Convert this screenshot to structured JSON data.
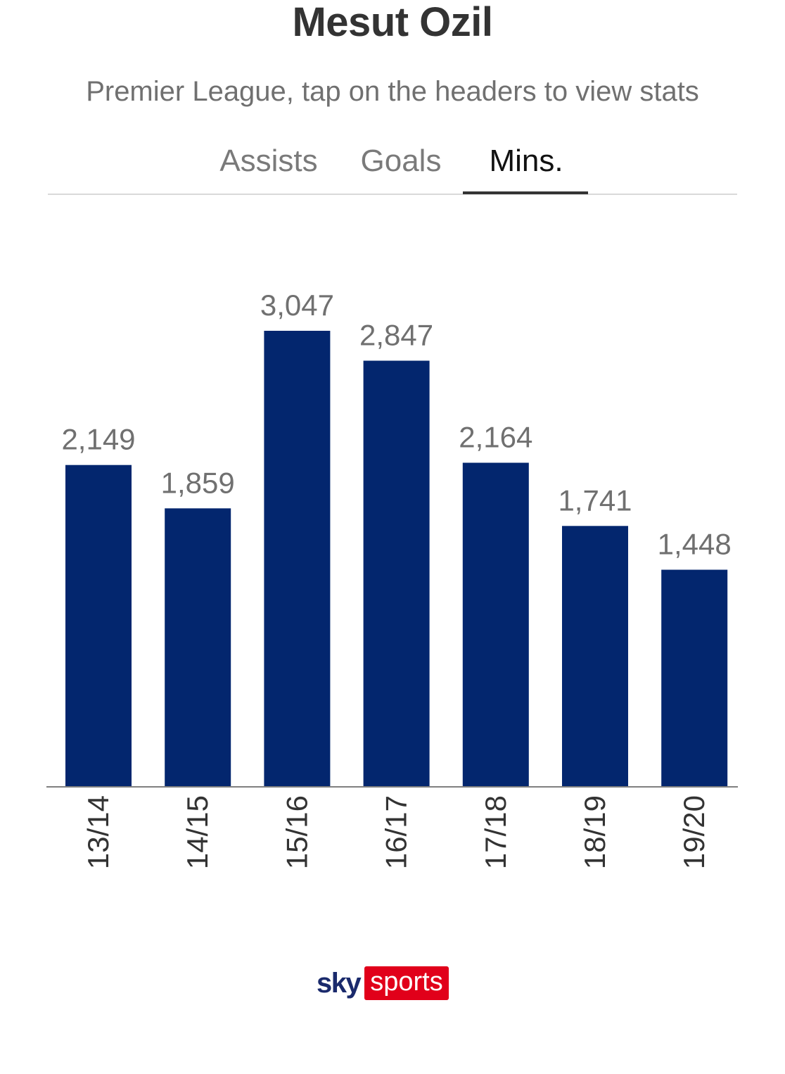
{
  "header": {
    "title": "Mesut Ozil",
    "subtitle": "Premier League, tap on the headers to view stats"
  },
  "tabs": {
    "assists": "Assists",
    "goals": "Goals",
    "mins": "Mins.",
    "active": "mins"
  },
  "colors": {
    "bar": "#03266e",
    "value_label": "#707070",
    "axis_label": "#333333",
    "axis_line": "#808080",
    "brand_sky": "#1a2a6c",
    "brand_sports_bg": "#e1001a"
  },
  "chart_data": {
    "type": "bar",
    "title": "Mesut Ozil",
    "subtitle": "Premier League, tap on the headers to view stats",
    "series_name": "Mins.",
    "categories": [
      "13/14",
      "14/15",
      "15/16",
      "16/17",
      "17/18",
      "18/19",
      "19/20"
    ],
    "values": [
      2149,
      1859,
      3047,
      2847,
      2164,
      1741,
      1448
    ],
    "value_labels": [
      "2,149",
      "1,859",
      "3,047",
      "2,847",
      "2,164",
      "1,741",
      "1,448"
    ],
    "xlabel": "",
    "ylabel": "",
    "ylim": [
      0,
      3047
    ],
    "grid": false,
    "x_tick_rotation": "vertical"
  },
  "branding": {
    "sky": "sky",
    "sports": "sports"
  }
}
